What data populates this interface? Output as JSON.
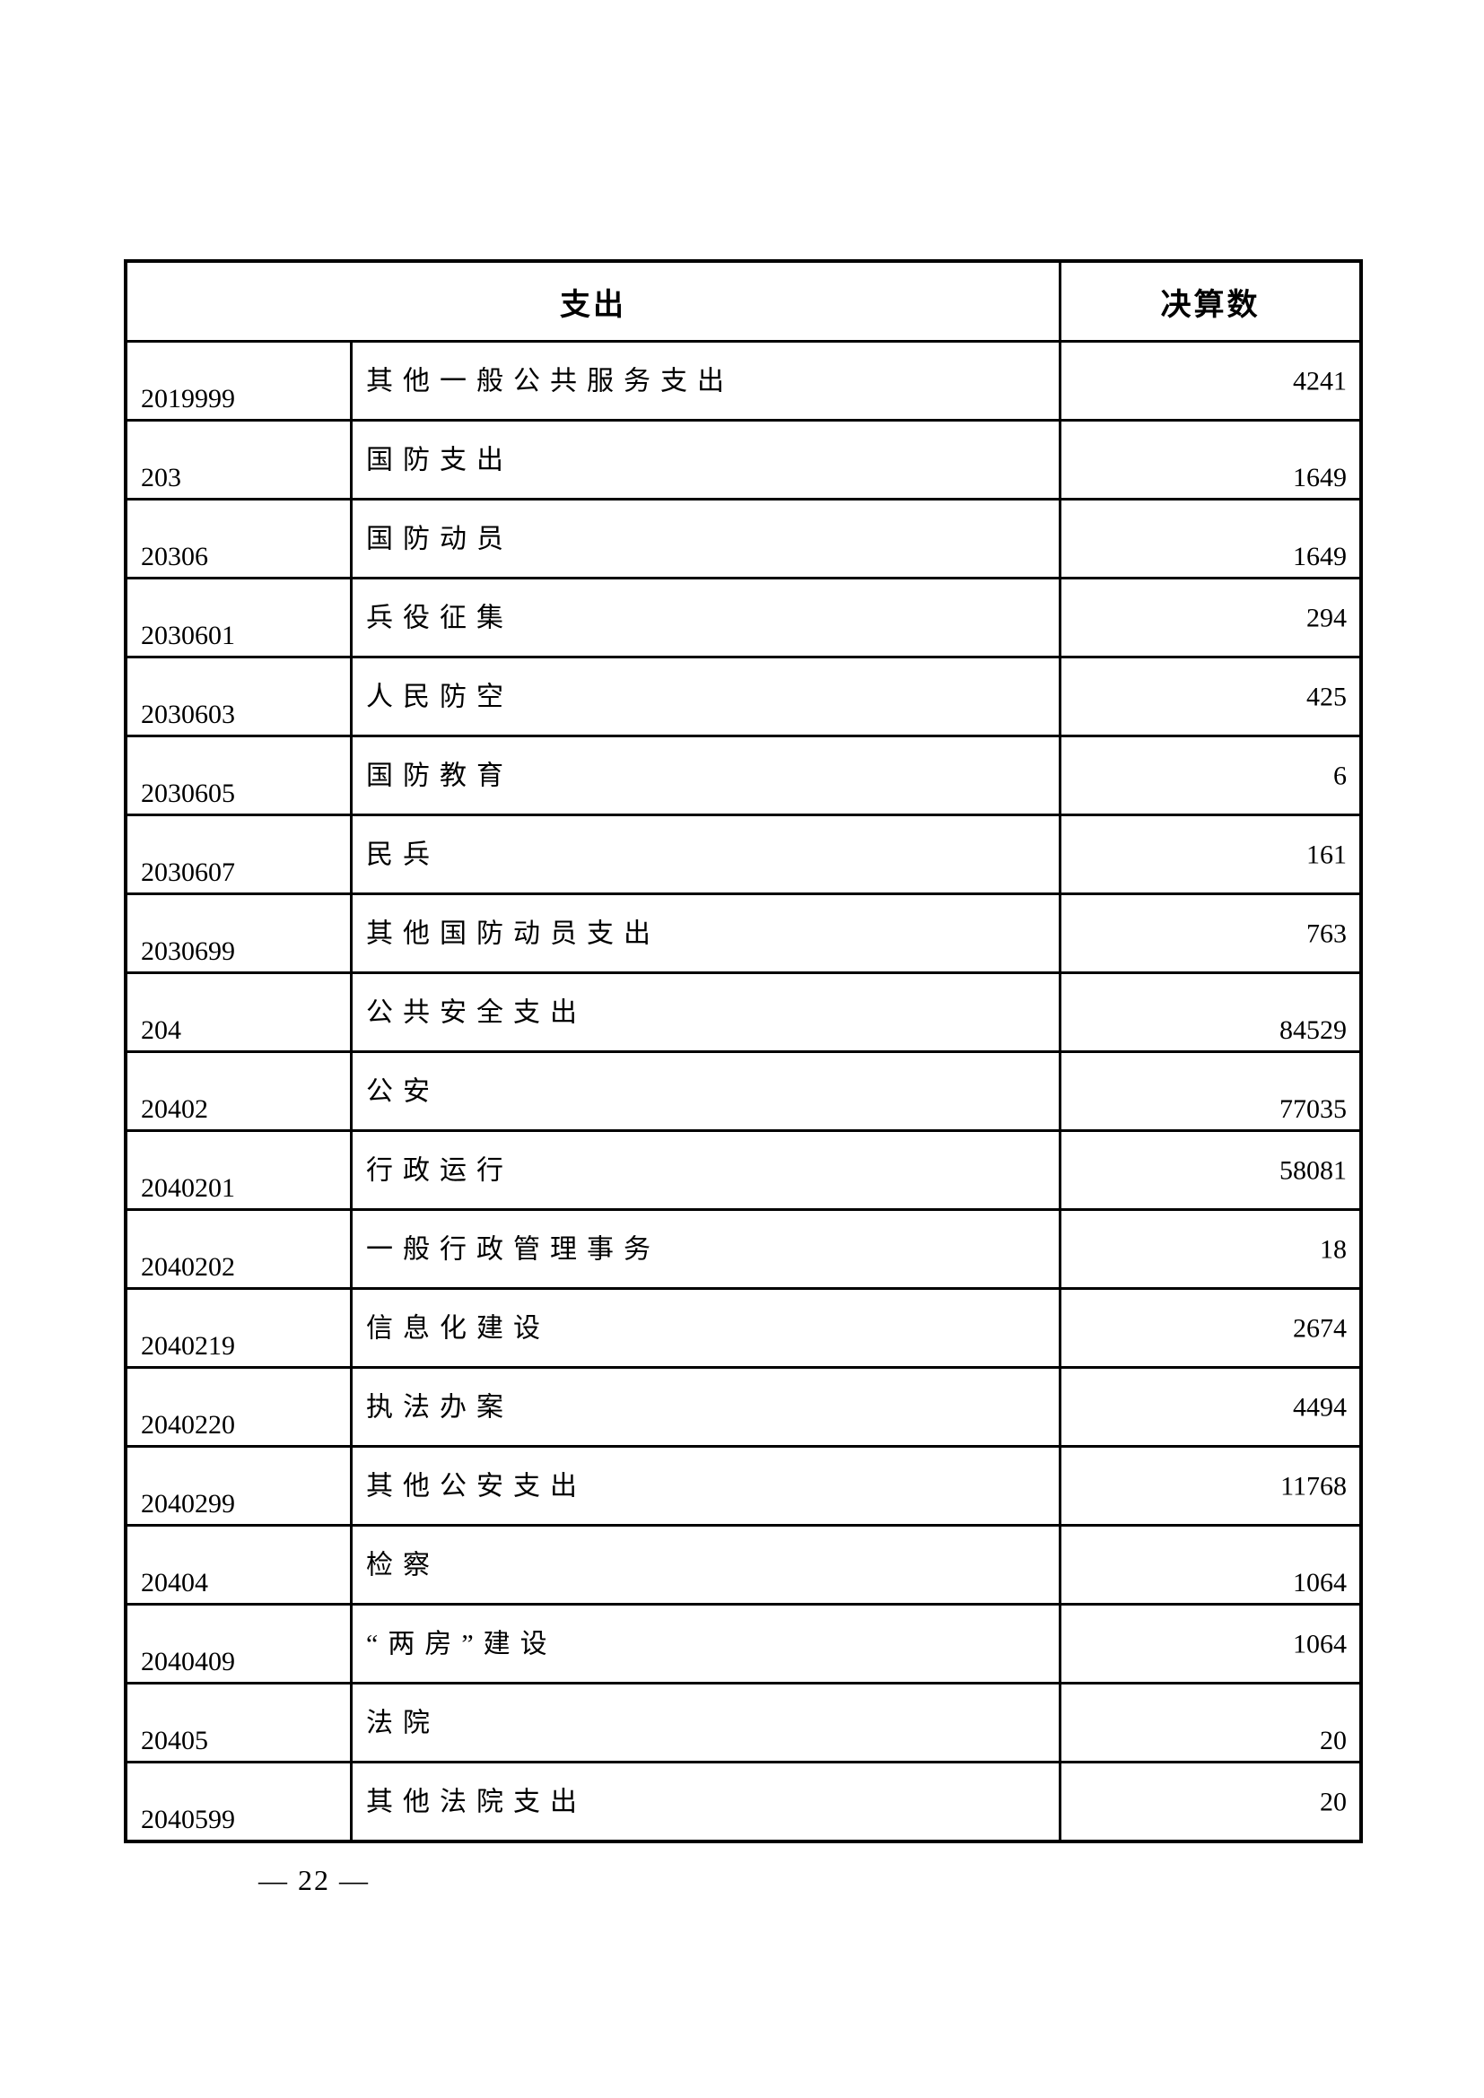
{
  "page": {
    "footer_page_number": "— 22 —"
  },
  "table": {
    "header": {
      "expenditure_label": "支出",
      "final_amount_label": "决算数"
    },
    "rows": [
      {
        "code": "2019999",
        "label": "其他一般公共服务支出",
        "value": "4241",
        "value_pos": "mid"
      },
      {
        "code": "203",
        "label": "国防支出",
        "value": "1649",
        "value_pos": "low"
      },
      {
        "code": "20306",
        "label": "国防动员",
        "value": "1649",
        "value_pos": "low"
      },
      {
        "code": "2030601",
        "label": "兵役征集",
        "value": "294",
        "value_pos": "mid"
      },
      {
        "code": "2030603",
        "label": "人民防空",
        "value": "425",
        "value_pos": "mid"
      },
      {
        "code": "2030605",
        "label": "国防教育",
        "value": "6",
        "value_pos": "mid"
      },
      {
        "code": "2030607",
        "label": "民兵",
        "value": "161",
        "value_pos": "mid"
      },
      {
        "code": "2030699",
        "label": "其他国防动员支出",
        "value": "763",
        "value_pos": "mid"
      },
      {
        "code": "204",
        "label": "公共安全支出",
        "value": "84529",
        "value_pos": "low"
      },
      {
        "code": "20402",
        "label": "公安",
        "value": "77035",
        "value_pos": "low"
      },
      {
        "code": "2040201",
        "label": "行政运行",
        "value": "58081",
        "value_pos": "mid"
      },
      {
        "code": "2040202",
        "label": "一般行政管理事务",
        "value": "18",
        "value_pos": "mid"
      },
      {
        "code": "2040219",
        "label": "信息化建设",
        "value": "2674",
        "value_pos": "mid"
      },
      {
        "code": "2040220",
        "label": "执法办案",
        "value": "4494",
        "value_pos": "mid"
      },
      {
        "code": "2040299",
        "label": "其他公安支出",
        "value": "11768",
        "value_pos": "mid"
      },
      {
        "code": "20404",
        "label": "检察",
        "value": "1064",
        "value_pos": "low"
      },
      {
        "code": "2040409",
        "label": "“两房”建设",
        "value": "1064",
        "value_pos": "mid"
      },
      {
        "code": "20405",
        "label": "法院",
        "value": "20",
        "value_pos": "low"
      },
      {
        "code": "2040599",
        "label": "其他法院支出",
        "value": "20",
        "value_pos": "mid"
      }
    ]
  }
}
